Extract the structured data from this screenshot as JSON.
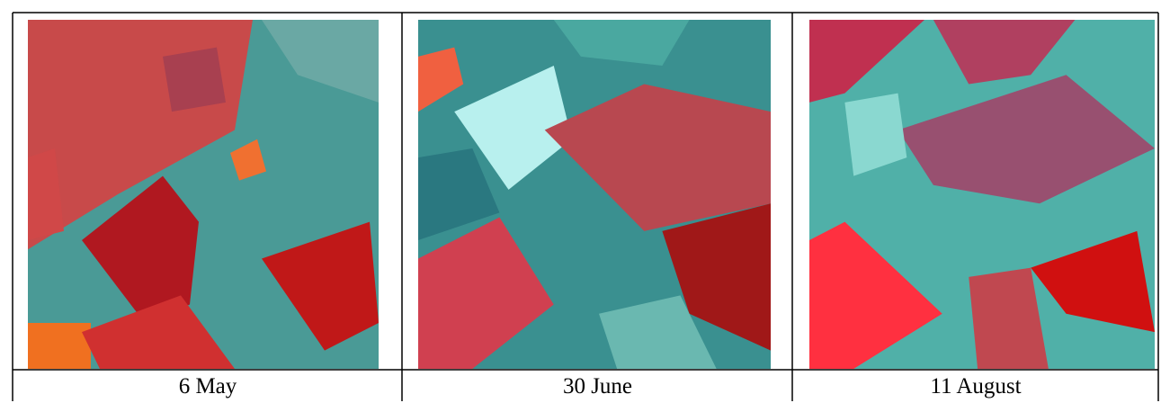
{
  "table": {
    "captions": [
      "6 May",
      "30 June",
      "11 August"
    ]
  }
}
